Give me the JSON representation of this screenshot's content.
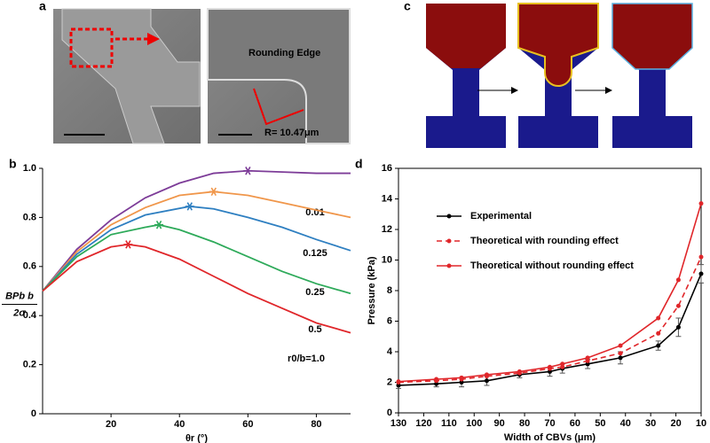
{
  "panel_labels": [
    "a",
    "b",
    "c",
    "d"
  ],
  "panel_a": {
    "annotation": "Rounding Edge",
    "radius_label": "R= 10.47μm"
  },
  "chart_data": [
    {
      "type": "line",
      "ylabel_numerator": "BPb b",
      "ylabel_denominator": "2σ",
      "xlabel": "θr (°)",
      "xlim": [
        0,
        90
      ],
      "xticks": [
        20,
        40,
        60,
        80
      ],
      "ylim": [
        0,
        1
      ],
      "yticks": [
        0,
        0.2,
        0.4,
        0.6,
        0.8,
        {
          "value": 1,
          "label": "1.0"
        }
      ],
      "grid": false,
      "series": [
        {
          "name": "0.01",
          "color": "#7d3c98",
          "x": [
            0,
            10,
            20,
            30,
            40,
            50,
            60,
            70,
            80,
            90
          ],
          "values": [
            0.5,
            0.67,
            0.79,
            0.88,
            0.94,
            0.98,
            0.99,
            0.985,
            0.98,
            0.98
          ],
          "peak": {
            "x": 60,
            "y": 0.99
          }
        },
        {
          "name": "0.125",
          "color": "#f0964a",
          "x": [
            0,
            10,
            20,
            30,
            40,
            50,
            60,
            70,
            80,
            90
          ],
          "values": [
            0.5,
            0.66,
            0.77,
            0.84,
            0.89,
            0.905,
            0.89,
            0.86,
            0.83,
            0.8
          ],
          "peak": {
            "x": 50,
            "y": 0.905
          }
        },
        {
          "name": "0.25",
          "color": "#2e7fc1",
          "x": [
            0,
            10,
            20,
            30,
            43,
            50,
            60,
            70,
            80,
            90
          ],
          "values": [
            0.5,
            0.65,
            0.75,
            0.81,
            0.845,
            0.835,
            0.8,
            0.76,
            0.71,
            0.665
          ],
          "peak": {
            "x": 43,
            "y": 0.845
          }
        },
        {
          "name": "0.5",
          "color": "#2eaa5a",
          "x": [
            0,
            10,
            20,
            30,
            34,
            40,
            50,
            60,
            70,
            80,
            90
          ],
          "values": [
            0.5,
            0.64,
            0.73,
            0.76,
            0.77,
            0.75,
            0.7,
            0.64,
            0.58,
            0.53,
            0.49
          ],
          "peak": {
            "x": 34,
            "y": 0.77
          }
        },
        {
          "name": "r0/b=1.0",
          "color": "#e0262a",
          "x": [
            0,
            10,
            20,
            25,
            30,
            40,
            50,
            60,
            70,
            80,
            90
          ],
          "values": [
            0.5,
            0.62,
            0.68,
            0.69,
            0.68,
            0.63,
            0.56,
            0.49,
            0.43,
            0.37,
            0.33
          ],
          "peak": {
            "x": 25,
            "y": 0.69
          }
        }
      ]
    },
    {
      "type": "line",
      "xlabel": "Width of CBVs (μm)",
      "ylabel": "Pressure (kPa)",
      "xlim": [
        130,
        10
      ],
      "xticks": [
        130,
        120,
        110,
        100,
        90,
        80,
        70,
        60,
        50,
        40,
        30,
        20,
        10
      ],
      "ylim": [
        0,
        16
      ],
      "yticks": [
        0,
        2,
        4,
        6,
        8,
        10,
        12,
        14,
        16
      ],
      "grid": false,
      "x": [
        130,
        115,
        105,
        95,
        82,
        70,
        65,
        55,
        42,
        27,
        19,
        10
      ],
      "series": [
        {
          "name": "Experimental",
          "color": "#000000",
          "dash": false,
          "values": [
            1.8,
            1.9,
            2.0,
            2.1,
            2.5,
            2.7,
            2.9,
            3.2,
            3.6,
            4.4,
            5.6,
            9.1
          ],
          "errors": [
            0.2,
            0.2,
            0.3,
            0.3,
            0.2,
            0.3,
            0.3,
            0.3,
            0.4,
            0.3,
            0.6,
            0.6
          ]
        },
        {
          "name": "Theoretical with rounding effect",
          "color": "#e0262a",
          "dash": true,
          "values": [
            2.0,
            2.1,
            2.2,
            2.4,
            2.6,
            2.9,
            3.0,
            3.4,
            3.9,
            5.2,
            7.0,
            10.2
          ]
        },
        {
          "name": "Theoretical without rounding effect",
          "color": "#e0262a",
          "dash": false,
          "values": [
            2.05,
            2.2,
            2.3,
            2.5,
            2.7,
            3.0,
            3.2,
            3.6,
            4.4,
            6.2,
            8.7,
            13.7
          ]
        }
      ]
    }
  ]
}
